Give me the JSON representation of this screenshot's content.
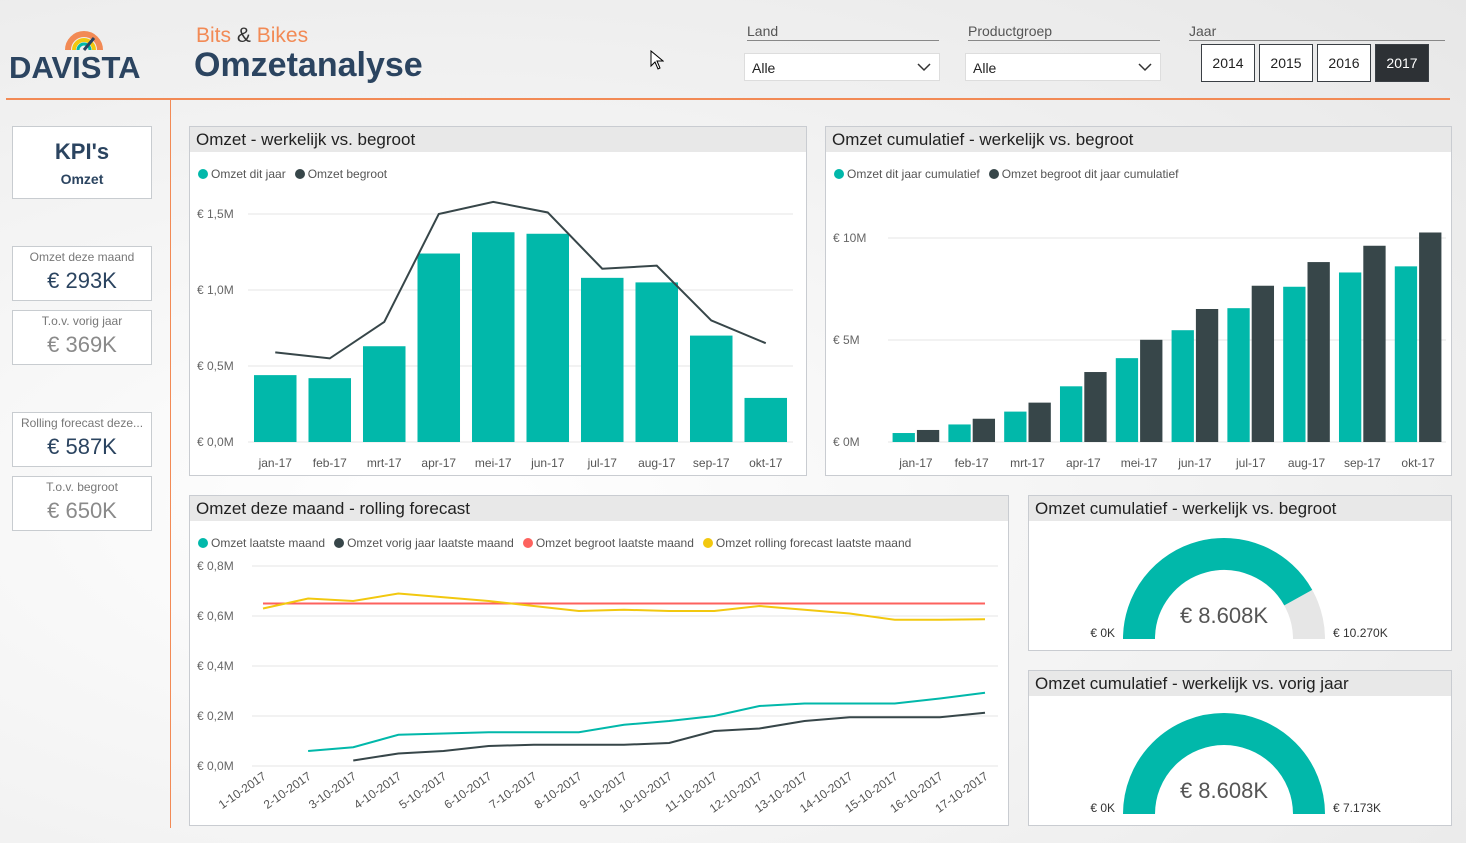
{
  "header": {
    "logo_text": "DAVISTA",
    "brand_part1": "Bits",
    "brand_amp": "&",
    "brand_part2": "Bikes",
    "title": "Omzetanalyse"
  },
  "slicers": {
    "land": {
      "label": "Land",
      "value": "Alle"
    },
    "productgroep": {
      "label": "Productgroep",
      "value": "Alle"
    },
    "jaar": {
      "label": "Jaar",
      "years": [
        "2014",
        "2015",
        "2016",
        "2017"
      ],
      "selected": "2017"
    }
  },
  "kpi": {
    "title": "KPI's",
    "subtitle": "Omzet",
    "cards": [
      {
        "label": "Omzet deze maand",
        "value": "€ 293K"
      },
      {
        "label": "T.o.v. vorig jaar",
        "value": "€ 369K"
      },
      {
        "label": "Rolling forecast deze...",
        "value": "€ 587K"
      },
      {
        "label": "T.o.v. begroot",
        "value": "€ 650K"
      }
    ]
  },
  "colors": {
    "teal": "#01b8aa",
    "dark": "#374649",
    "red": "#fd625e",
    "yellow": "#f2c80f",
    "accent": "#f28a55",
    "navy": "#2b4460"
  },
  "chart_data": [
    {
      "type": "bar",
      "title": "Omzet - werkelijk vs. begroot",
      "categories": [
        "jan-17",
        "feb-17",
        "mrt-17",
        "apr-17",
        "mei-17",
        "jun-17",
        "jul-17",
        "aug-17",
        "sep-17",
        "okt-17"
      ],
      "series": [
        {
          "name": "Omzet dit jaar",
          "kind": "bar",
          "color": "#01b8aa",
          "values": [
            0.44,
            0.42,
            0.63,
            1.24,
            1.38,
            1.37,
            1.08,
            1.05,
            0.7,
            0.29
          ]
        },
        {
          "name": "Omzet begroot",
          "kind": "line",
          "color": "#374649",
          "values": [
            0.59,
            0.55,
            0.79,
            1.5,
            1.58,
            1.51,
            1.14,
            1.16,
            0.8,
            0.65
          ]
        }
      ],
      "yticks": [
        "€ 0,0M",
        "€ 0,5M",
        "€ 1,0M",
        "€ 1,5M"
      ],
      "ylim": [
        0,
        1.5
      ],
      "grid": true,
      "legend_position": "top-left"
    },
    {
      "type": "bar",
      "title": "Omzet cumulatief - werkelijk vs. begroot",
      "categories": [
        "jan-17",
        "feb-17",
        "mrt-17",
        "apr-17",
        "mei-17",
        "jun-17",
        "jul-17",
        "aug-17",
        "sep-17",
        "okt-17"
      ],
      "series": [
        {
          "name": "Omzet dit jaar cumulatief",
          "color": "#01b8aa",
          "values": [
            0.44,
            0.86,
            1.49,
            2.73,
            4.11,
            5.48,
            6.56,
            7.61,
            8.31,
            8.61
          ]
        },
        {
          "name": "Omzet begroot dit jaar cumulatief",
          "color": "#374649",
          "values": [
            0.59,
            1.14,
            1.93,
            3.43,
            5.01,
            6.52,
            7.66,
            8.82,
            9.62,
            10.27
          ]
        }
      ],
      "yticks": [
        "€ 0M",
        "€ 5M",
        "€ 10M"
      ],
      "ylim": [
        0,
        10
      ],
      "grid": true,
      "legend_position": "top-left"
    },
    {
      "type": "line",
      "title": "Omzet deze maand - rolling forecast",
      "categories": [
        "1-10-2017",
        "2-10-2017",
        "3-10-2017",
        "4-10-2017",
        "5-10-2017",
        "6-10-2017",
        "7-10-2017",
        "8-10-2017",
        "9-10-2017",
        "10-10-2017",
        "11-10-2017",
        "12-10-2017",
        "13-10-2017",
        "14-10-2017",
        "15-10-2017",
        "16-10-2017",
        "17-10-2017"
      ],
      "series": [
        {
          "name": "Omzet laatste maand",
          "color": "#01b8aa",
          "values": [
            null,
            0.06,
            0.075,
            0.125,
            0.13,
            0.135,
            0.135,
            0.135,
            0.165,
            0.18,
            0.2,
            0.24,
            0.25,
            0.25,
            0.25,
            0.27,
            0.293
          ]
        },
        {
          "name": "Omzet vorig jaar laatste maand",
          "color": "#374649",
          "values": [
            null,
            null,
            0.022,
            0.05,
            0.06,
            0.08,
            0.085,
            0.085,
            0.085,
            0.092,
            0.14,
            0.15,
            0.18,
            0.195,
            0.195,
            0.195,
            0.213
          ]
        },
        {
          "name": "Omzet begroot laatste maand",
          "color": "#fd625e",
          "values": [
            0.65,
            0.65,
            0.65,
            0.65,
            0.65,
            0.65,
            0.65,
            0.65,
            0.65,
            0.65,
            0.65,
            0.65,
            0.65,
            0.65,
            0.65,
            0.65,
            0.65
          ]
        },
        {
          "name": "Omzet rolling forecast laatste maand",
          "color": "#f2c80f",
          "values": [
            0.63,
            0.67,
            0.66,
            0.69,
            0.675,
            0.66,
            0.64,
            0.62,
            0.625,
            0.62,
            0.62,
            0.64,
            0.625,
            0.61,
            0.585,
            0.585,
            0.587
          ]
        }
      ],
      "yticks": [
        "€ 0,0M",
        "€ 0,2M",
        "€ 0,4M",
        "€ 0,6M",
        "€ 0,8M"
      ],
      "ylim": [
        0,
        0.8
      ],
      "grid": true,
      "legend_position": "top-left"
    },
    {
      "type": "gauge",
      "title": "Omzet cumulatief - werkelijk vs. begroot",
      "value": 8608,
      "min": 0,
      "max": 10270,
      "value_label": "€ 8.608K",
      "min_label": "€ 0K",
      "max_label": "€ 10.270K"
    },
    {
      "type": "gauge",
      "title": "Omzet cumulatief - werkelijk vs. vorig jaar",
      "value": 8608,
      "min": 0,
      "max": 7173,
      "value_label": "€ 8.608K",
      "min_label": "€ 0K",
      "max_label": "€ 7.173K"
    }
  ]
}
